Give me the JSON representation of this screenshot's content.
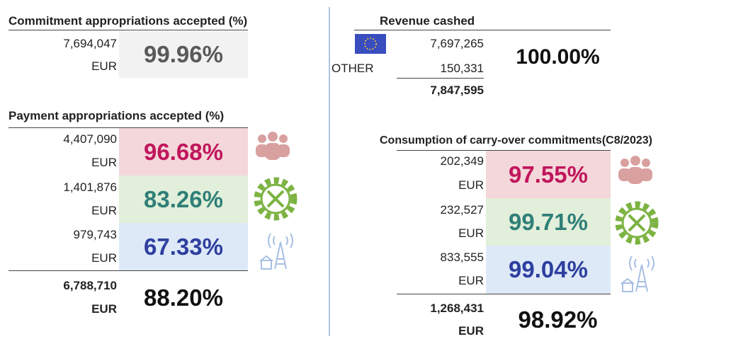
{
  "commitment": {
    "title": "Commitment appropriations accepted (%)",
    "amount": "7,694,047",
    "unit": "EUR",
    "percent": "99.96%"
  },
  "revenue": {
    "title": "Revenue cashed",
    "rows": [
      {
        "amount": "7,697,265"
      },
      {
        "label": "OTHER",
        "amount": "150,331"
      }
    ],
    "total": "7,847,595",
    "percent": "100.00%"
  },
  "payment": {
    "title": "Payment appropriations accepted (%)",
    "rows": [
      {
        "amount": "4,407,090",
        "unit": "EUR",
        "percent": "96.68%"
      },
      {
        "amount": "1,401,876",
        "unit": "EUR",
        "percent": "83.26%"
      },
      {
        "amount": "979,743",
        "unit": "EUR",
        "percent": "67.33%"
      }
    ],
    "total": {
      "amount": "6,788,710",
      "unit": "EUR",
      "percent": "88.20%"
    }
  },
  "carryover": {
    "title": "Consumption of carry-over commitments(C8/2023)",
    "rows": [
      {
        "amount": "202,349",
        "unit": "EUR",
        "percent": "97.55%"
      },
      {
        "amount": "232,527",
        "unit": "EUR",
        "percent": "99.71%"
      },
      {
        "amount": "833,555",
        "unit": "EUR",
        "percent": "99.04%"
      }
    ],
    "total": {
      "amount": "1,268,431",
      "unit": "EUR",
      "percent": "98.92%"
    }
  }
}
